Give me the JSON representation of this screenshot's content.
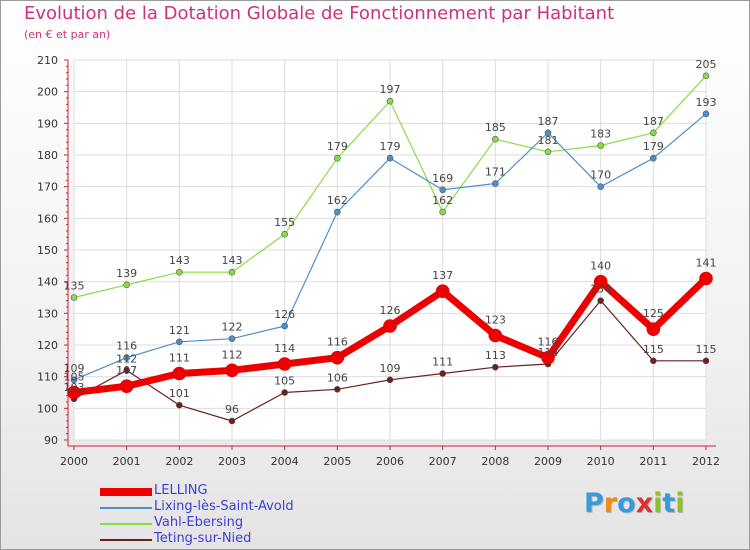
{
  "title": "Evolution de la Dotation Globale de Fonctionnement par Habitant",
  "subtitle": "(en € et par an)",
  "logo": {
    "letters": [
      "P",
      "r",
      "o",
      "x",
      "i",
      "t",
      "i"
    ],
    "colors": [
      "#3a9ad9",
      "#f08a1c",
      "#3a9ad9",
      "#e03030",
      "#8fbf2a",
      "#3a9ad9",
      "#8fbf2a"
    ]
  },
  "chart_data": {
    "type": "line",
    "categories": [
      "2000",
      "2001",
      "2002",
      "2003",
      "2004",
      "2005",
      "2006",
      "2007",
      "2008",
      "2009",
      "2010",
      "2011",
      "2012"
    ],
    "ylim": [
      90,
      210
    ],
    "yticks": [
      "90",
      "100",
      "110",
      "120",
      "130",
      "140",
      "150",
      "160",
      "170",
      "180",
      "190",
      "200",
      "210"
    ],
    "grid": true,
    "legend_position": "bottom-left",
    "series": [
      {
        "name": "Teting-sur-Nied",
        "color": "#6b1f1f",
        "width": 1.2,
        "values": [
          103,
          112,
          101,
          96,
          105,
          106,
          109,
          111,
          113,
          114,
          134,
          115,
          115
        ],
        "labels": [
          "103",
          "112",
          "101",
          "96",
          "105",
          "106",
          "109",
          "111",
          "113",
          "114",
          "134",
          "115",
          "115"
        ]
      },
      {
        "name": "Vahl-Ebersing",
        "color": "#88dd44",
        "width": 1.2,
        "values": [
          135,
          139,
          143,
          143,
          155,
          179,
          197,
          162,
          185,
          181,
          183,
          187,
          205
        ],
        "labels": [
          "135",
          "139",
          "143",
          "143",
          "155",
          "179",
          "197",
          "162",
          "185",
          "181",
          "183",
          "187",
          "205"
        ]
      },
      {
        "name": "Lixing-lès-Saint-Avold",
        "color": "#4d8fcc",
        "width": 1.2,
        "values": [
          109,
          116,
          121,
          122,
          126,
          162,
          179,
          169,
          171,
          187,
          170,
          179,
          193
        ],
        "labels": [
          "109",
          "116",
          "121",
          "122",
          "126",
          "162",
          "179",
          "169",
          "171",
          "187",
          "170",
          "179",
          "193"
        ]
      },
      {
        "name": "LELLING",
        "color": "#ee0000",
        "width": 7,
        "values": [
          105,
          107,
          111,
          112,
          114,
          116,
          126,
          137,
          123,
          116,
          140,
          125,
          141
        ],
        "labels": [
          "105",
          "107",
          "111",
          "112",
          "114",
          "116",
          "126",
          "137",
          "123",
          "116",
          "140",
          "125",
          "141"
        ]
      }
    ]
  }
}
